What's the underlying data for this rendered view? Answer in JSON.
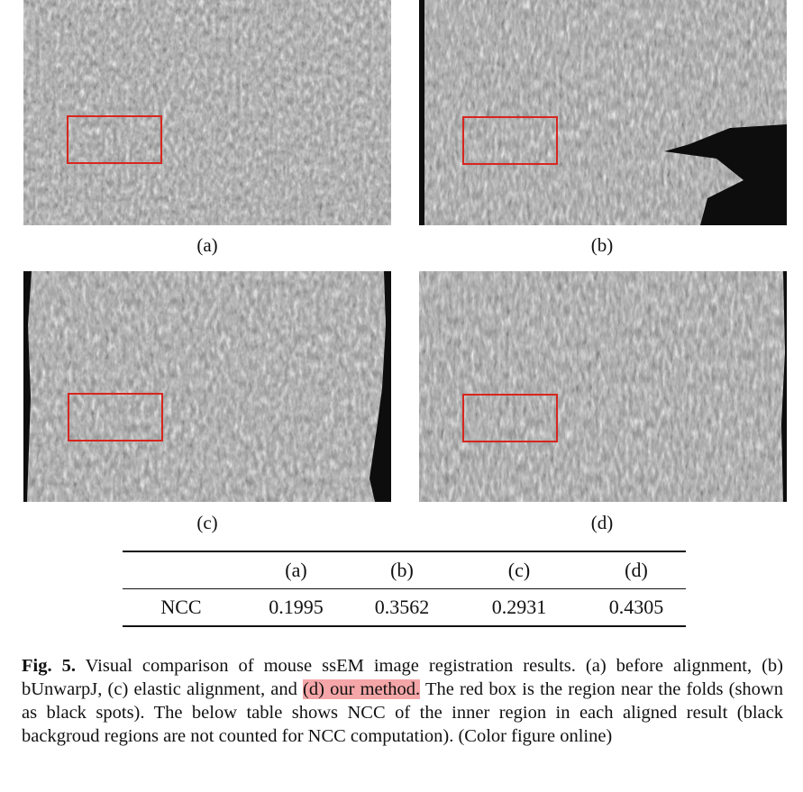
{
  "figure": {
    "panels": [
      {
        "label": "(a)",
        "edge": "none"
      },
      {
        "label": "(b)",
        "edge": "right-large"
      },
      {
        "label": "(c)",
        "edge": "both"
      },
      {
        "label": "(d)",
        "edge": "right-small"
      }
    ],
    "box_color": "#d7261e"
  },
  "table": {
    "headers": [
      "",
      "(a)",
      "(b)",
      "(c)",
      "(d)"
    ],
    "row_label": "NCC",
    "values": [
      "0.1995",
      "0.3562",
      "0.2931",
      "0.4305"
    ]
  },
  "caption": {
    "fig_label": "Fig. 5.",
    "text_before": " Visual comparison of mouse ssEM image registration results. (a) before alignment, (b) bUnwarpJ, (c) elastic alignment, and ",
    "highlight": "(d) our method.",
    "text_after": " The red box is the region near the folds (shown as black spots). The below table shows NCC of the inner region in each aligned result (black backgroud regions are not counted for NCC computation). (Color figure online)",
    "highlight_color": "#f5a6a8"
  }
}
